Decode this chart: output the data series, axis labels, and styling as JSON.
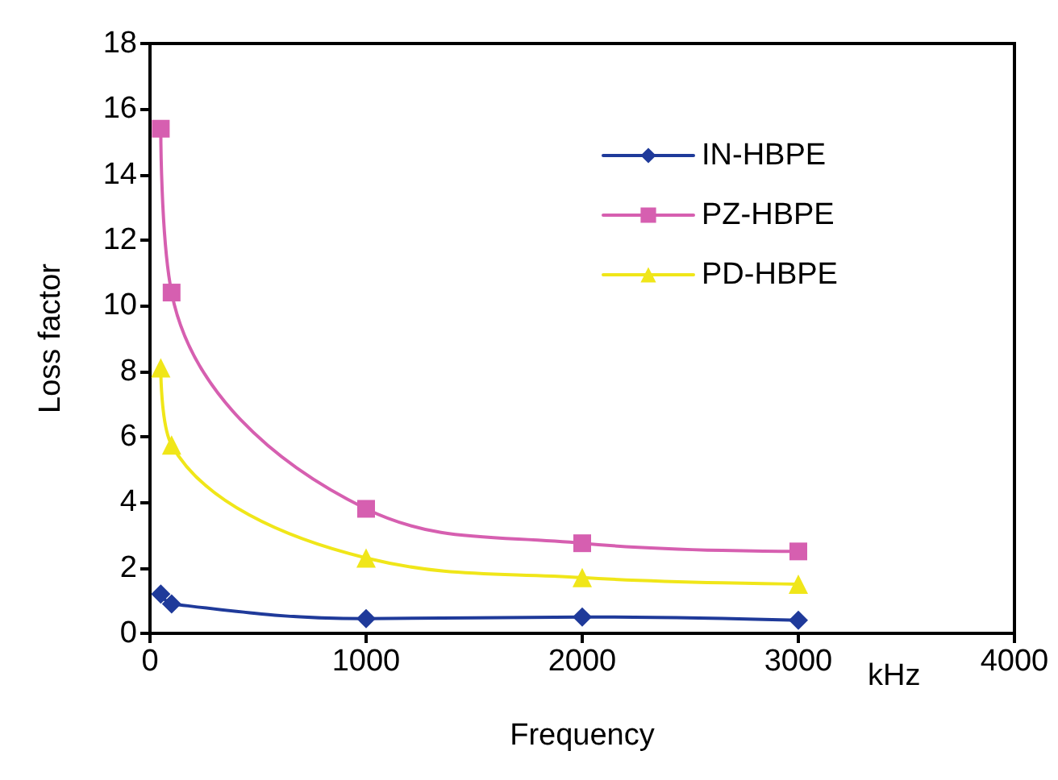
{
  "chart_data": {
    "type": "line",
    "xlabel": "Frequency",
    "ylabel": "Loss factor",
    "annotations": [
      "kHz"
    ],
    "x": [
      50,
      100,
      1000,
      2000,
      3000
    ],
    "series": [
      {
        "name": "IN-HBPE",
        "color": "#1f3a9a",
        "marker": "diamond",
        "values": [
          1.2,
          0.9,
          0.45,
          0.5,
          0.4
        ]
      },
      {
        "name": "PZ-HBPE",
        "color": "#d65fb0",
        "marker": "square",
        "values": [
          15.4,
          10.4,
          3.8,
          2.75,
          2.5
        ]
      },
      {
        "name": "PD-HBPE",
        "color": "#f0e619",
        "marker": "triangle",
        "values": [
          8.1,
          5.75,
          2.3,
          1.7,
          1.5
        ]
      }
    ],
    "xlim": [
      0,
      4000
    ],
    "xticks": [
      0,
      1000,
      2000,
      3000,
      4000
    ],
    "ylim": [
      0,
      18
    ],
    "yticks": [
      0,
      2,
      4,
      6,
      8,
      10,
      12,
      14,
      16,
      18
    ],
    "grid": false,
    "legend": "top right",
    "line_style": "solid"
  }
}
